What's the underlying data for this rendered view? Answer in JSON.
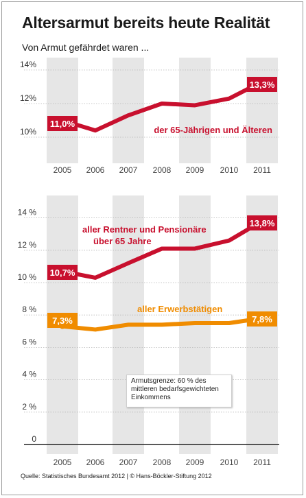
{
  "title": "Altersarmut bereits heute Realität",
  "subtitle": "Von Armut gefährdet waren ...",
  "source": "Quelle: Statistisches Bundesamt 2012 | © Hans-Böckler-Stiftung 2012",
  "note": "Armutsgrenze: 60 % des mittleren bedarfsgewichteten Einkommens",
  "colors": {
    "red": "#c8102e",
    "orange": "#f08c00",
    "band": "#e6e6e6"
  },
  "chart_data": [
    {
      "type": "line",
      "x": [
        "2005",
        "2006",
        "2007",
        "2008",
        "2009",
        "2010",
        "2011"
      ],
      "ylim": [
        8.7,
        15
      ],
      "yticks": [
        "10%",
        "12%",
        "14%"
      ],
      "ytick_values": [
        10,
        12,
        14
      ],
      "series": [
        {
          "name": "der 65-Jährigen und Älteren",
          "color": "#c8102e",
          "values": [
            11.0,
            10.4,
            11.3,
            12.0,
            11.9,
            12.3,
            13.3
          ],
          "callouts": {
            "first": "11,0%",
            "last": "13,3%"
          }
        }
      ]
    },
    {
      "type": "line",
      "x": [
        "2005",
        "2006",
        "2007",
        "2008",
        "2009",
        "2010",
        "2011"
      ],
      "ylim": [
        0,
        15.3
      ],
      "yticks": [
        "0",
        "2 %",
        "4 %",
        "6 %",
        "8 %",
        "10 %",
        "12 %",
        "14 %"
      ],
      "ytick_values": [
        0,
        2,
        4,
        6,
        8,
        10,
        12,
        14
      ],
      "series": [
        {
          "name": "aller Rentner und Pensionäre über 65 Jahre",
          "label_lines": [
            "aller Rentner und Pensionäre",
            "über 65 Jahre"
          ],
          "color": "#c8102e",
          "values": [
            10.7,
            10.3,
            11.2,
            12.1,
            12.1,
            12.6,
            13.8
          ],
          "callouts": {
            "first": "10,7%",
            "last": "13,8%"
          }
        },
        {
          "name": "aller Erwerbstätigen",
          "label_lines": [
            "aller Erwerbstätigen"
          ],
          "color": "#f08c00",
          "values": [
            7.3,
            7.1,
            7.4,
            7.4,
            7.5,
            7.5,
            7.8
          ],
          "callouts": {
            "first": "7,3%",
            "last": "7,8%"
          }
        }
      ]
    }
  ]
}
